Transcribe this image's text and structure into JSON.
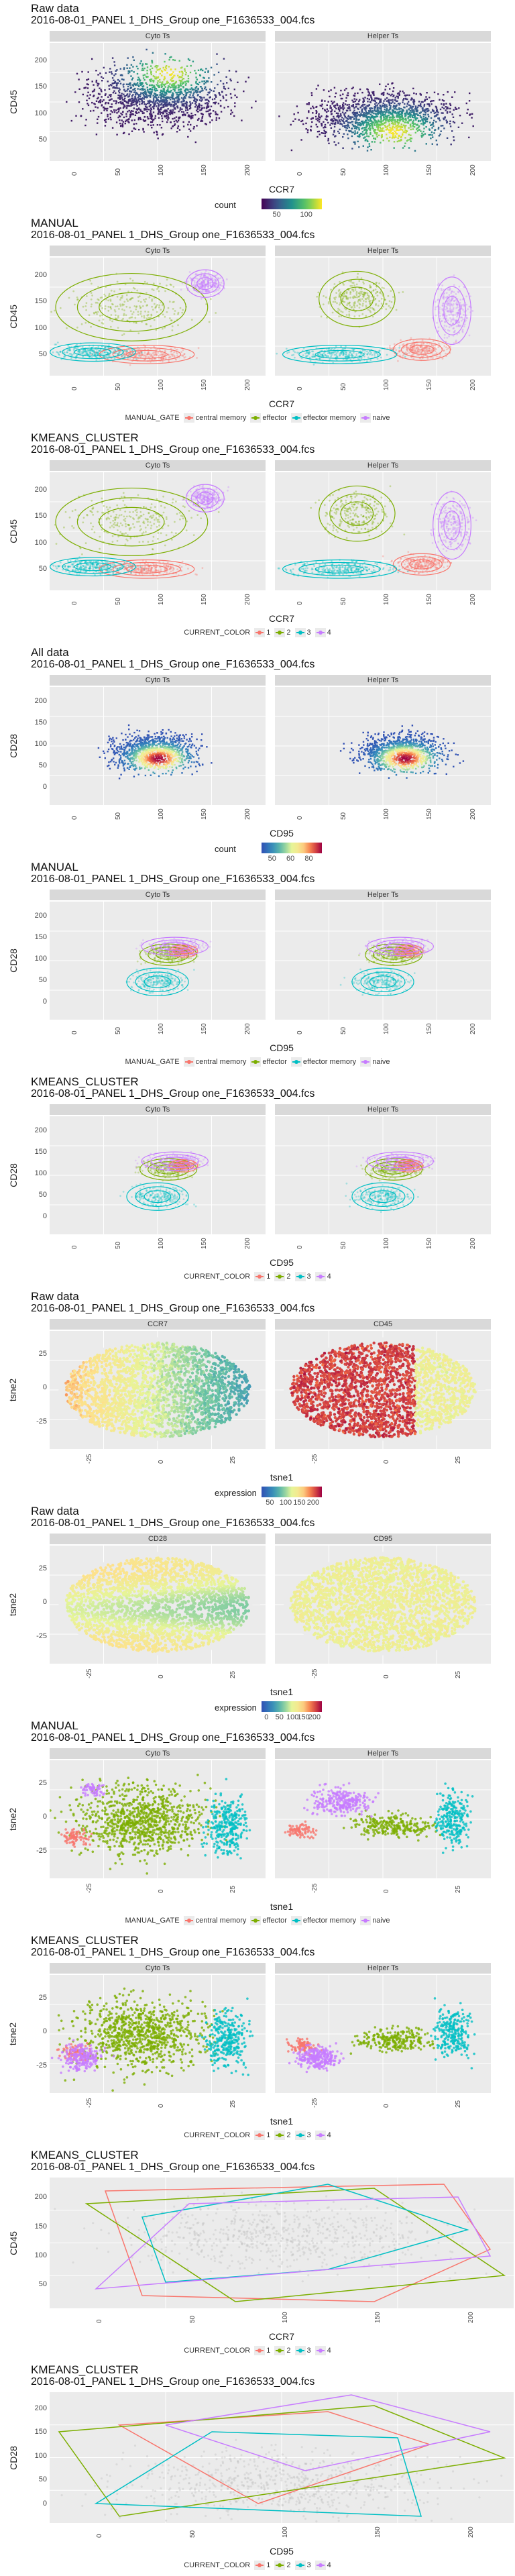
{
  "sections": [
    {
      "id": "s1",
      "top": 0,
      "title": "Raw data",
      "subtitle": "2016-08-01_PANEL 1_DHS_Group one_F1636533_004.fcs",
      "facets": [
        "Cyto Ts",
        "Helper Ts"
      ],
      "xlabel": "CCR7",
      "ylabel": "CD45",
      "yticks": [
        "200",
        "150",
        "100",
        "50"
      ],
      "xticks": [
        "0",
        "50",
        "100",
        "150",
        "200"
      ],
      "mode": "hex",
      "legend_title": "count",
      "legend_ticks": [
        "50",
        "100"
      ]
    },
    {
      "id": "s2",
      "top": 320,
      "title": "MANUAL",
      "subtitle": "2016-08-01_PANEL 1_DHS_Group one_F1636533_004.fcs",
      "facets": [
        "Cyto Ts",
        "Helper Ts"
      ],
      "xlabel": "CCR7",
      "ylabel": "CD45",
      "yticks": [
        "200",
        "150",
        "100",
        "50"
      ],
      "xticks": [
        "0",
        "50",
        "100",
        "150",
        "200"
      ],
      "mode": "gate4",
      "legend_title": "MANUAL_GATE",
      "legend_items": [
        "central memory",
        "effector",
        "effector memory",
        "naive"
      ]
    },
    {
      "id": "s3",
      "top": 640,
      "title": "KMEANS_CLUSTER",
      "subtitle": "2016-08-01_PANEL 1_DHS_Group one_F1636533_004.fcs",
      "facets": [
        "Cyto Ts",
        "Helper Ts"
      ],
      "xlabel": "CCR7",
      "ylabel": "CD45",
      "yticks": [
        "200",
        "150",
        "100",
        "50"
      ],
      "xticks": [
        "0",
        "50",
        "100",
        "150",
        "200"
      ],
      "mode": "cluster4",
      "legend_title": "CURRENT_COLOR",
      "legend_items": [
        "1",
        "2",
        "3",
        "4"
      ]
    },
    {
      "id": "s4",
      "top": 960,
      "title": "All data",
      "subtitle": "2016-08-01_PANEL 1_DHS_Group one_F1636533_004.fcs",
      "facets": [
        "Cyto Ts",
        "Helper Ts"
      ],
      "xlabel": "CD95",
      "ylabel": "CD28",
      "yticks": [
        "200",
        "150",
        "100",
        "50",
        "0"
      ],
      "xticks": [
        "0",
        "50",
        "100",
        "150",
        "200"
      ],
      "mode": "hex2",
      "legend_title": "count",
      "legend_ticks": [
        "50",
        "60",
        "80"
      ]
    },
    {
      "id": "s5",
      "top": 1280,
      "title": "MANUAL",
      "subtitle": "2016-08-01_PANEL 1_DHS_Group one_F1636533_004.fcs",
      "facets": [
        "Cyto Ts",
        "Helper Ts"
      ],
      "xlabel": "CD95",
      "ylabel": "CD28",
      "yticks": [
        "200",
        "150",
        "100",
        "50",
        "0"
      ],
      "xticks": [
        "0",
        "50",
        "100",
        "150",
        "200"
      ],
      "mode": "gate4b",
      "legend_title": "MANUAL_GATE",
      "legend_items": [
        "central memory",
        "effector",
        "effector memory",
        "naive"
      ]
    },
    {
      "id": "s6",
      "top": 1600,
      "title": "KMEANS_CLUSTER",
      "subtitle": "2016-08-01_PANEL 1_DHS_Group one_F1636533_004.fcs",
      "facets": [
        "Cyto Ts",
        "Helper Ts"
      ],
      "xlabel": "CD95",
      "ylabel": "CD28",
      "yticks": [
        "200",
        "150",
        "100",
        "50",
        "0"
      ],
      "xticks": [
        "0",
        "50",
        "100",
        "150",
        "200"
      ],
      "mode": "cluster4b",
      "legend_title": "CURRENT_COLOR",
      "legend_items": [
        "1",
        "2",
        "3",
        "4"
      ]
    },
    {
      "id": "s7",
      "top": 1920,
      "title": "Raw data",
      "subtitle": "2016-08-01_PANEL 1_DHS_Group one_F1636533_004.fcs",
      "facets": [
        "CCR7",
        "CD45"
      ],
      "xlabel": "tsne1",
      "ylabel": "tsne2",
      "yticks": [
        "25",
        "0",
        "-25"
      ],
      "xticks": [
        "-25",
        "0",
        "25"
      ],
      "mode": "tsne_expr",
      "legend_title": "expression",
      "legend_ticks": [
        "50",
        "100",
        "150",
        "200"
      ]
    },
    {
      "id": "s8",
      "top": 2240,
      "title": "Raw data",
      "subtitle": "2016-08-01_PANEL 1_DHS_Group one_F1636533_004.fcs",
      "facets": [
        "CD28",
        "CD95"
      ],
      "xlabel": "tsne1",
      "ylabel": "tsne2",
      "yticks": [
        "25",
        "0",
        "-25"
      ],
      "xticks": [
        "-25",
        "0",
        "25"
      ],
      "mode": "tsne_expr2",
      "legend_title": "expression",
      "legend_ticks": [
        "0",
        "50",
        "100",
        "150",
        "200"
      ]
    },
    {
      "id": "s9",
      "top": 2560,
      "title": "MANUAL",
      "subtitle": "2016-08-01_PANEL 1_DHS_Group one_F1636533_004.fcs",
      "facets": [
        "Cyto Ts",
        "Helper Ts"
      ],
      "xlabel": "tsne1",
      "ylabel": "tsne2",
      "yticks": [
        "25",
        "0",
        "-25"
      ],
      "xticks": [
        "-25",
        "0",
        "25"
      ],
      "mode": "tsne_gate",
      "legend_title": "MANUAL_GATE",
      "legend_items": [
        "central memory",
        "effector",
        "effector memory",
        "naive"
      ]
    },
    {
      "id": "s10",
      "top": 2880,
      "title": "KMEANS_CLUSTER",
      "subtitle": "2016-08-01_PANEL 1_DHS_Group one_F1636533_004.fcs",
      "facets": [
        "Cyto Ts",
        "Helper Ts"
      ],
      "xlabel": "tsne1",
      "ylabel": "tsne2",
      "yticks": [
        "25",
        "0",
        "-25"
      ],
      "xticks": [
        "-25",
        "0",
        "25"
      ],
      "mode": "tsne_cluster",
      "legend_title": "CURRENT_COLOR",
      "legend_items": [
        "1",
        "2",
        "3",
        "4"
      ]
    },
    {
      "id": "s11",
      "top": 3200,
      "title": "KMEANS_CLUSTER",
      "subtitle": "2016-08-01_PANEL 1_DHS_Group one_F1636533_004.fcs",
      "facets": [],
      "xlabel": "CCR7",
      "ylabel": "CD45",
      "yticks": [
        "200",
        "150",
        "100",
        "50"
      ],
      "xticks": [
        "0",
        "50",
        "100",
        "150",
        "200"
      ],
      "mode": "hull",
      "legend_title": "CURRENT_COLOR",
      "legend_items": [
        "1",
        "2",
        "3",
        "4"
      ]
    },
    {
      "id": "s12",
      "top": 3520,
      "title": "KMEANS_CLUSTER",
      "subtitle": "2016-08-01_PANEL 1_DHS_Group one_F1636533_004.fcs",
      "facets": [],
      "xlabel": "CD95",
      "ylabel": "CD28",
      "yticks": [
        "200",
        "150",
        "100",
        "50",
        "0"
      ],
      "xticks": [
        "0",
        "50",
        "100",
        "150",
        "200"
      ],
      "mode": "hull2",
      "legend_title": "CURRENT_COLOR",
      "legend_items": [
        "1",
        "2",
        "3",
        "4"
      ]
    }
  ],
  "colors": {
    "c1": "#f8766d",
    "c2": "#7cae00",
    "c3": "#00bfc4",
    "c4": "#c77cff"
  }
}
